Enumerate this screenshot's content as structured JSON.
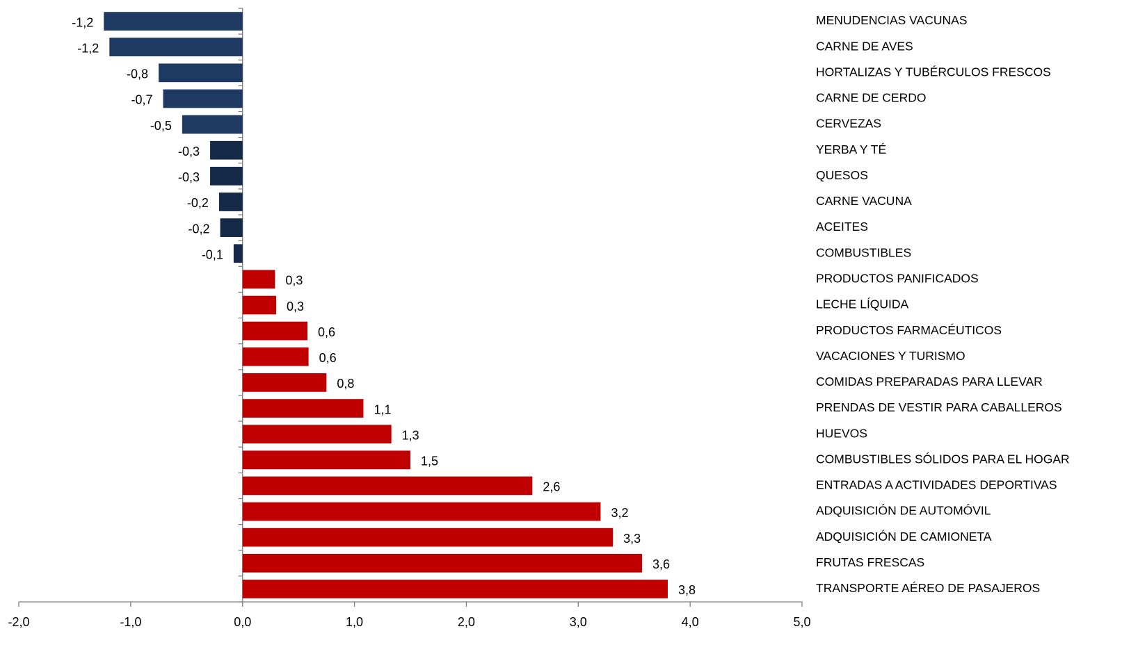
{
  "chart_data": {
    "type": "hbar",
    "categories": [
      "MENUDENCIAS VACUNAS",
      "CARNE DE AVES",
      "HORTALIZAS Y TUBÉRCULOS FRESCOS",
      "CARNE DE CERDO",
      "CERVEZAS",
      "YERBA Y TÉ",
      "QUESOS",
      "CARNE VACUNA",
      "ACEITES",
      "COMBUSTIBLES",
      "PRODUCTOS PANIFICADOS",
      "LECHE LÍQUIDA",
      "PRODUCTOS FARMACÉUTICOS",
      "VACACIONES Y TURISMO",
      "COMIDAS PREPARADAS PARA LLEVAR",
      "PRENDAS DE VESTIR PARA CABALLEROS",
      "HUEVOS",
      "COMBUSTIBLES SÓLIDOS PARA EL HOGAR",
      "ENTRADAS A ACTIVIDADES DEPORTIVAS",
      "ADQUISICIÓN DE AUTOMÓVIL",
      "ADQUISICIÓN DE CAMIONETA",
      "FRUTAS FRESCAS",
      "TRANSPORTE AÉREO DE PASAJEROS"
    ],
    "values": [
      -1.24,
      -1.19,
      -0.75,
      -0.71,
      -0.54,
      -0.29,
      -0.29,
      -0.21,
      -0.2,
      -0.08,
      0.29,
      0.3,
      0.58,
      0.59,
      0.75,
      1.08,
      1.33,
      1.5,
      2.59,
      3.2,
      3.31,
      3.57,
      3.8
    ],
    "value_labels": [
      "-1,2",
      "-1,2",
      "-0,8",
      "-0,7",
      "-0,5",
      "-0,3",
      "-0,3",
      "-0,2",
      "-0,2",
      "-0,1",
      "0,3",
      "0,3",
      "0,6",
      "0,6",
      "0,8",
      "1,1",
      "1,3",
      "1,5",
      "2,6",
      "3,2",
      "3,3",
      "3,6",
      "3,8"
    ],
    "colors": [
      "#1f3a62",
      "#1f3a62",
      "#1f3a62",
      "#1f3a62",
      "#1f3a62",
      "#152948",
      "#152948",
      "#152948",
      "#152948",
      "#152948",
      "#c00000",
      "#c00000",
      "#c00000",
      "#c00000",
      "#c00000",
      "#c00000",
      "#c00000",
      "#c00000",
      "#c00000",
      "#c00000",
      "#c00000",
      "#c00000",
      "#c00000"
    ],
    "xlim": [
      -2,
      5
    ],
    "xticks": [
      {
        "value": -2,
        "label": "-2,0"
      },
      {
        "value": -1,
        "label": "-1,0"
      },
      {
        "value": 0,
        "label": "0,0"
      },
      {
        "value": 1,
        "label": "1,0"
      },
      {
        "value": 2,
        "label": "2,0"
      },
      {
        "value": 3,
        "label": "3,0"
      },
      {
        "value": 4,
        "label": "4,0"
      },
      {
        "value": 5,
        "label": "5,0"
      }
    ]
  }
}
